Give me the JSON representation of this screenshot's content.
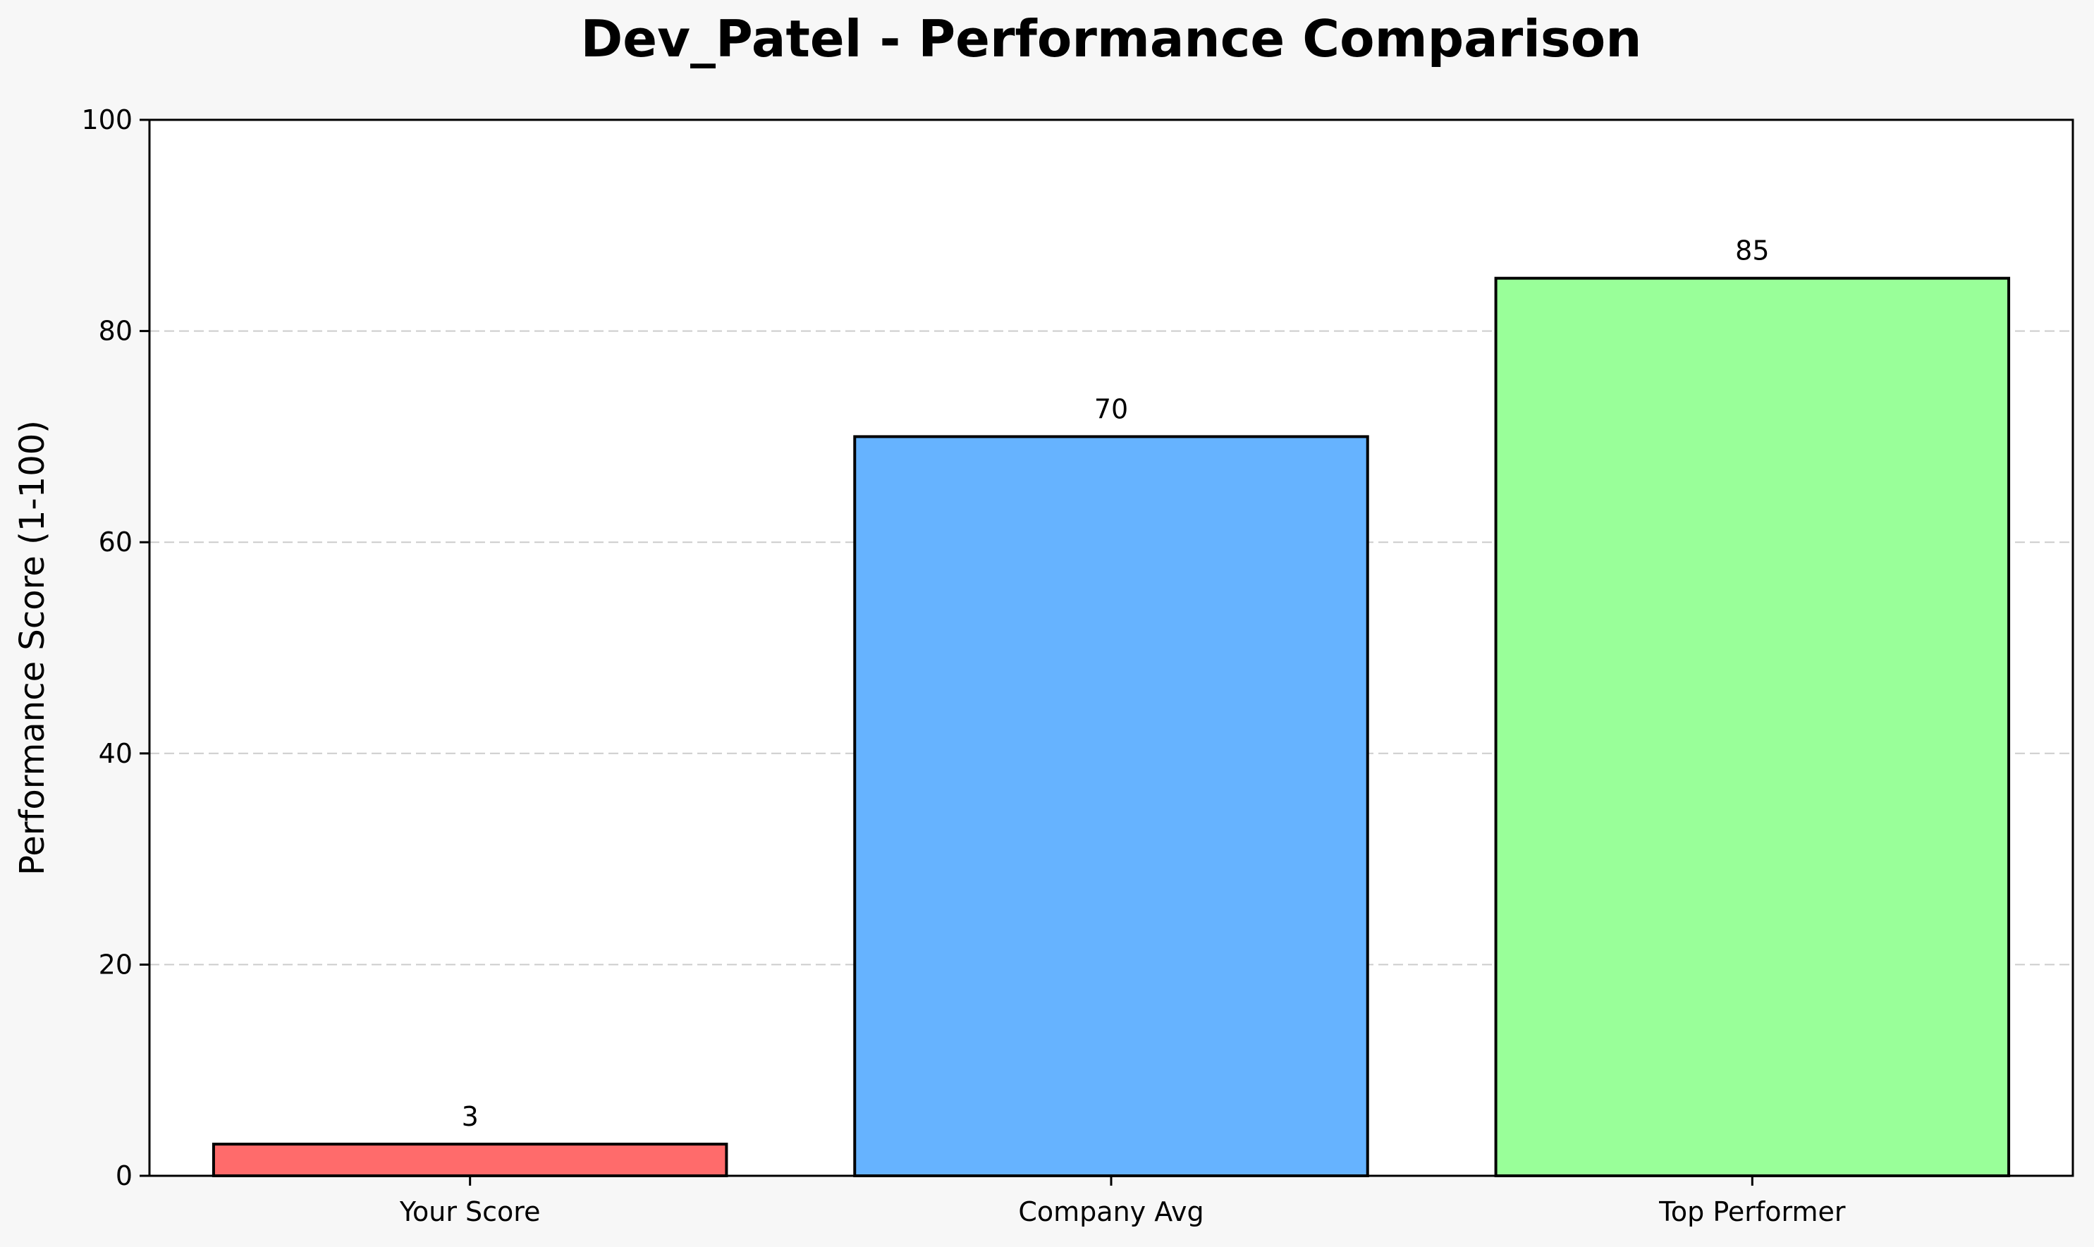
{
  "chart_data": {
    "type": "bar",
    "title": "Dev_Patel - Performance Comparison",
    "xlabel": "",
    "ylabel": "Performance Score (1-100)",
    "categories": [
      "Your Score",
      "Company Avg",
      "Top Performer"
    ],
    "values": [
      3,
      70,
      85
    ],
    "value_labels": [
      "3",
      "70",
      "85"
    ],
    "colors": [
      "#ff6b6b",
      "#66b3ff",
      "#99ff99"
    ],
    "edge_color": "#000000",
    "ylim": [
      0,
      100
    ],
    "yticks": [
      0,
      20,
      40,
      60,
      80,
      100
    ],
    "ytick_labels": [
      "0",
      "20",
      "40",
      "60",
      "80",
      "100"
    ],
    "grid": {
      "axis": "y",
      "style": "dashed",
      "color": "#cccccc"
    },
    "background": "#f7f7f7",
    "plot_background": "#ffffff"
  }
}
